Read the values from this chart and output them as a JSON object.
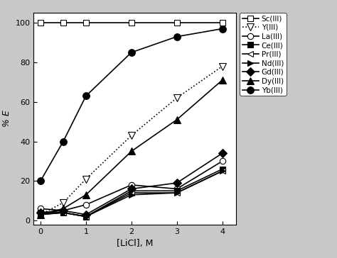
{
  "x": [
    0,
    0.5,
    1,
    2,
    3,
    4
  ],
  "series": {
    "Sc(III)": {
      "y": [
        100,
        100,
        100,
        100,
        100,
        100
      ],
      "marker": "s",
      "marker_fill": "white",
      "linestyle": "-",
      "color": "black",
      "markersize": 6
    },
    "Y(III)": {
      "y": [
        3,
        9,
        21,
        43,
        62,
        78
      ],
      "marker": "v",
      "marker_fill": "white",
      "linestyle": ":",
      "color": "black",
      "markersize": 7
    },
    "La(III)": {
      "y": [
        6,
        5,
        8,
        18,
        16,
        30
      ],
      "marker": "o",
      "marker_fill": "white",
      "linestyle": "-",
      "color": "black",
      "markersize": 6
    },
    "Ce(III)": {
      "y": [
        4,
        4,
        2,
        15,
        15,
        26
      ],
      "marker": "s",
      "marker_fill": "black",
      "linestyle": "-",
      "color": "black",
      "markersize": 6
    },
    "Pr(III)": {
      "y": [
        3,
        4,
        2,
        14,
        14,
        25
      ],
      "marker": "<",
      "marker_fill": "white",
      "linestyle": "-",
      "color": "black",
      "markersize": 6
    },
    "Nd(III)": {
      "y": [
        3,
        4,
        2,
        13,
        14,
        25
      ],
      "marker": ">",
      "marker_fill": "black",
      "linestyle": "-",
      "color": "black",
      "markersize": 6
    },
    "Gd(III)": {
      "y": [
        4,
        5,
        3,
        16,
        19,
        34
      ],
      "marker": "D",
      "marker_fill": "black",
      "linestyle": "-",
      "color": "black",
      "markersize": 6
    },
    "Dy(III)": {
      "y": [
        3,
        6,
        13,
        35,
        51,
        71
      ],
      "marker": "^",
      "marker_fill": "black",
      "linestyle": "-",
      "color": "black",
      "markersize": 7
    },
    "Yb(III)": {
      "y": [
        20,
        40,
        63,
        85,
        93,
        97
      ],
      "marker": "o",
      "marker_fill": "black",
      "linestyle": "-",
      "color": "black",
      "markersize": 7
    }
  },
  "xlabel": "[LiCl], M",
  "ylabel": "% E",
  "xlim": [
    -0.15,
    4.3
  ],
  "ylim": [
    -2,
    105
  ],
  "xticks": [
    0,
    1,
    2,
    3,
    4
  ],
  "yticks": [
    0,
    20,
    40,
    60,
    80,
    100
  ],
  "figsize": [
    4.74,
    3.64
  ],
  "dpi": 100,
  "fig_facecolor": "#c8c8c8",
  "axes_facecolor": "#ffffff"
}
